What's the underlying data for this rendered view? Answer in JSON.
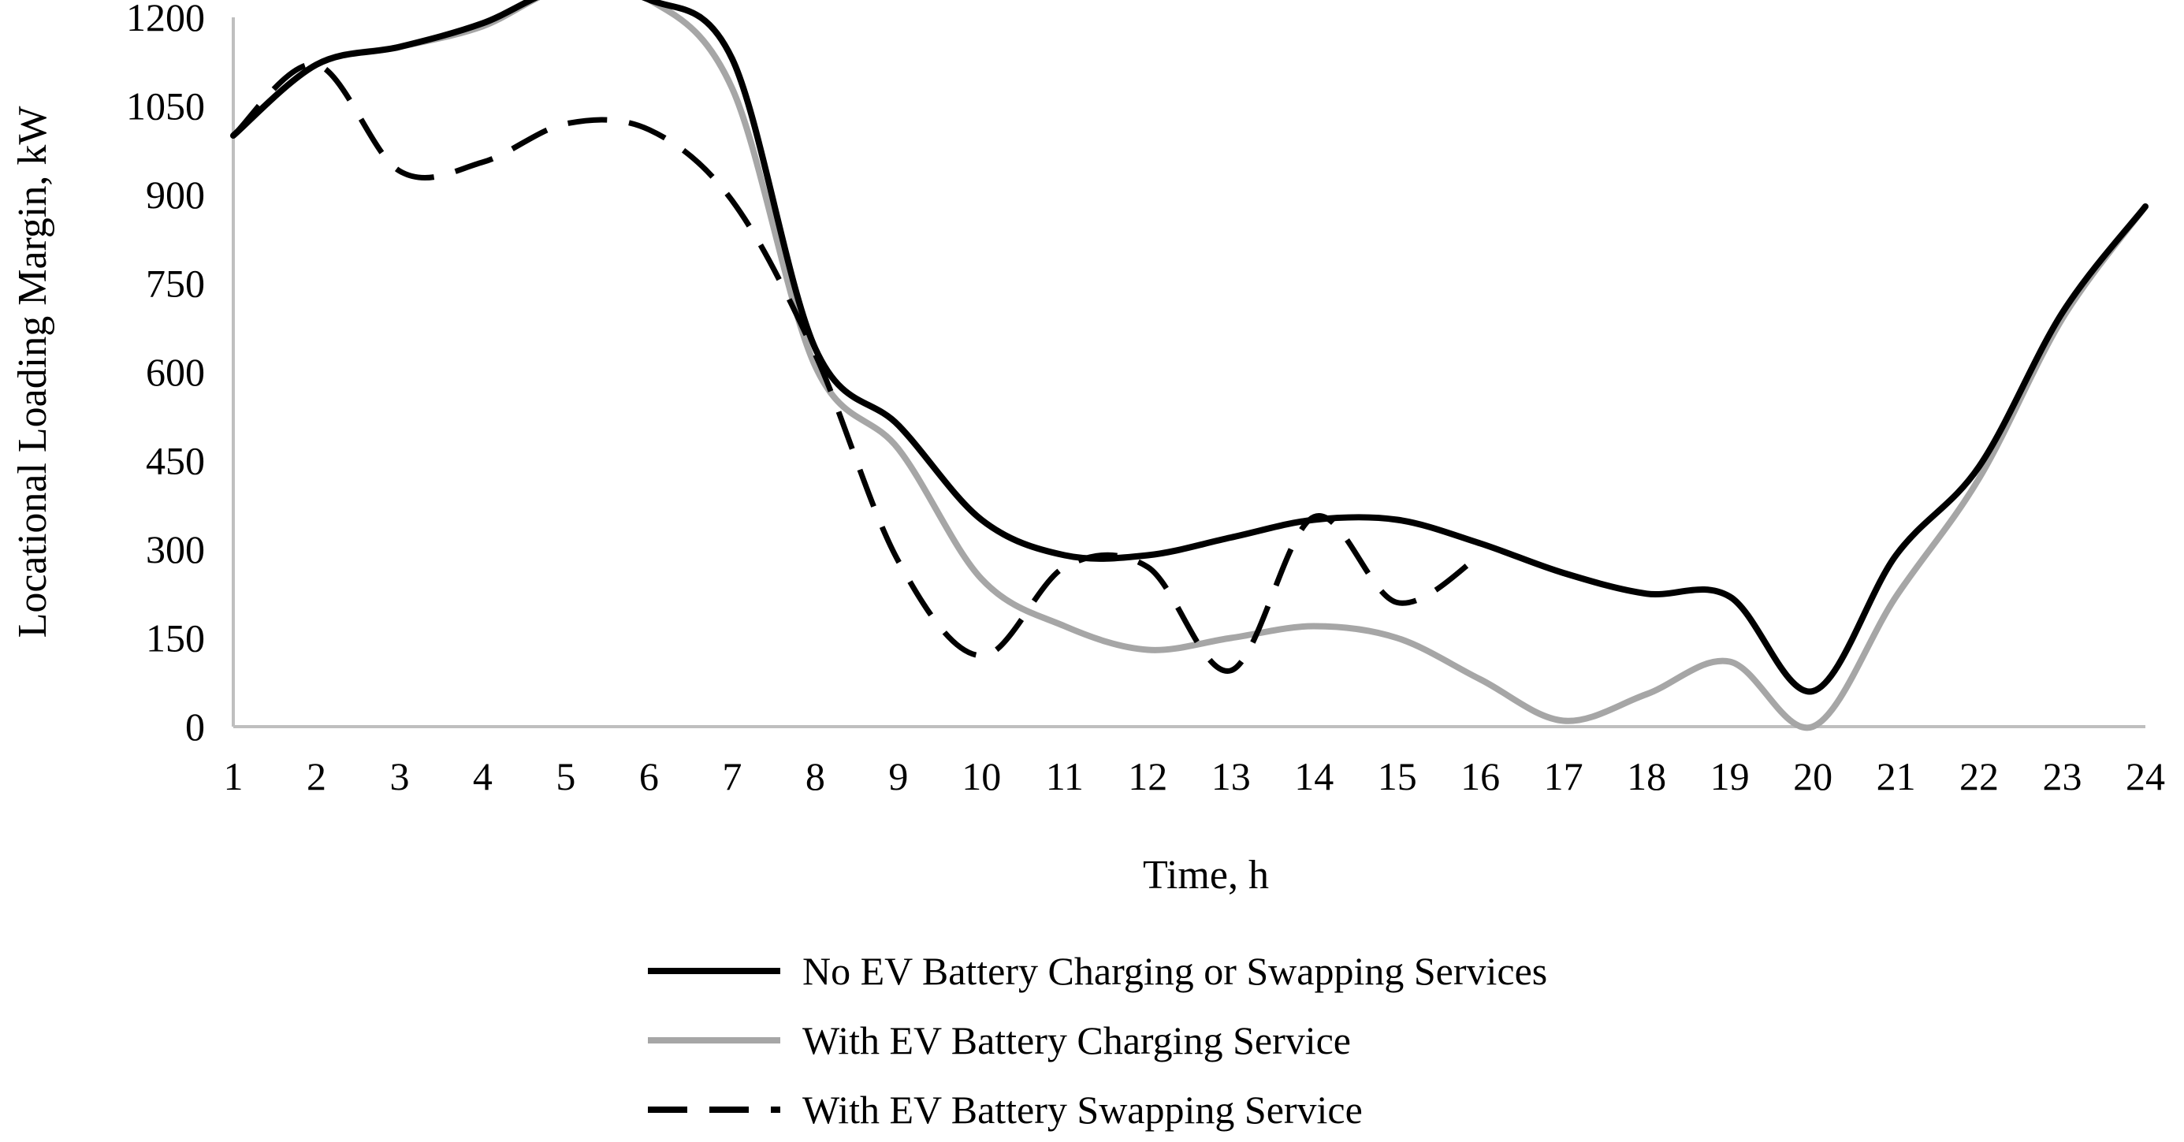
{
  "chart_data": {
    "type": "line",
    "title": "",
    "xlabel": "Time, h",
    "ylabel": "Locational Loading Margin, kW",
    "x": [
      1,
      2,
      3,
      4,
      5,
      6,
      7,
      8,
      9,
      10,
      11,
      12,
      13,
      14,
      15,
      16,
      17,
      18,
      19,
      20,
      21,
      22,
      23,
      24
    ],
    "xlim": [
      1,
      24
    ],
    "ylim": [
      0,
      1200
    ],
    "yticks": [
      0,
      150,
      300,
      450,
      600,
      750,
      900,
      1050,
      1200
    ],
    "grid": false,
    "legend_position": "bottom",
    "series": [
      {
        "name": "No EV Battery Charging or Swapping Services",
        "color": "#000000",
        "style": "solid",
        "values": [
          1000,
          1120,
          1150,
          1190,
          1250,
          1230,
          1130,
          640,
          510,
          350,
          290,
          290,
          320,
          350,
          350,
          310,
          260,
          225,
          220,
          60,
          290,
          440,
          700,
          880
        ]
      },
      {
        "name": "With EV Battery Charging Service",
        "color": "#a6a6a6",
        "style": "solid",
        "values": [
          1000,
          1120,
          1150,
          1185,
          1250,
          1230,
          1080,
          610,
          470,
          250,
          170,
          130,
          150,
          170,
          150,
          80,
          10,
          55,
          110,
          0,
          220,
          420,
          690,
          880
        ]
      },
      {
        "name": "With EV Battery Swapping Service",
        "color": "#000000",
        "style": "dashed",
        "values": [
          1000,
          1120,
          940,
          955,
          1020,
          1010,
          890,
          630,
          280,
          120,
          270,
          270,
          95,
          355,
          210,
          290,
          null,
          null,
          null,
          null,
          null,
          null,
          null,
          null
        ]
      }
    ]
  }
}
